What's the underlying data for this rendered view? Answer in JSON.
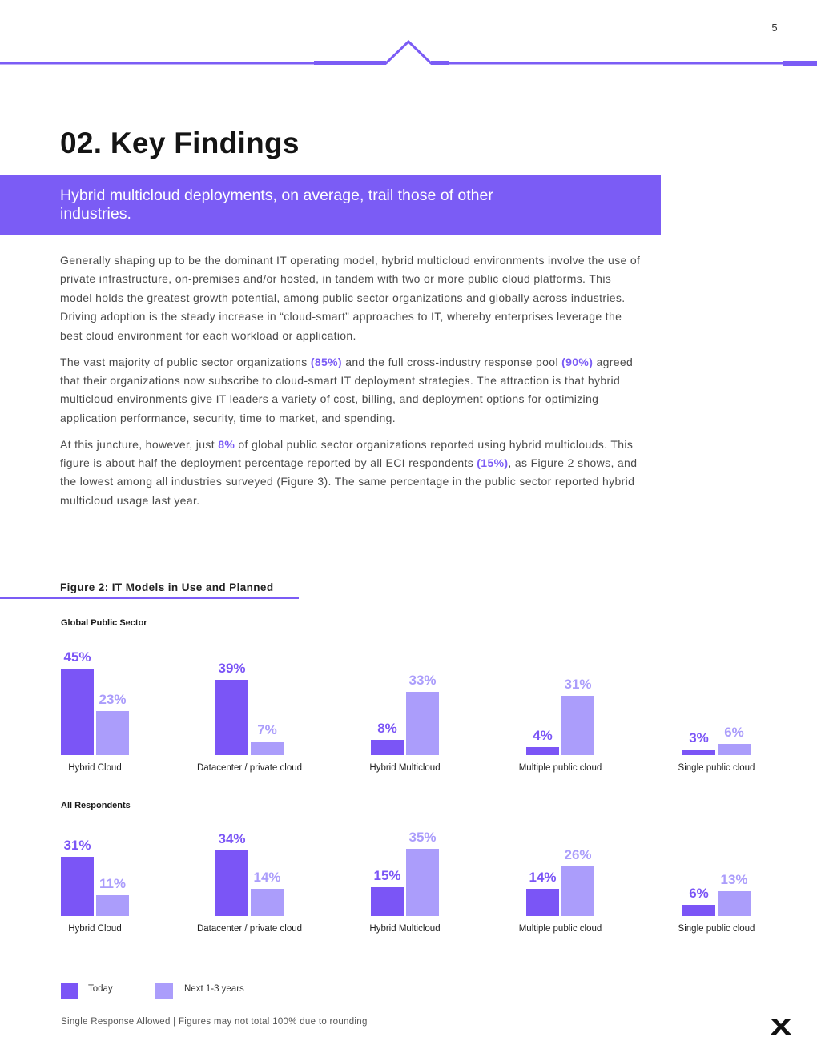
{
  "page": {
    "number": "5"
  },
  "section": {
    "title": "02. Key Findings",
    "banner": "Hybrid multicloud deployments, on average, trail those of other industries."
  },
  "body": {
    "p1": "Generally shaping up to be the dominant IT operating model, hybrid multicloud environments involve the use of private infrastructure, on-premises and/or hosted, in tandem with two or more public cloud platforms. This model holds the greatest growth potential, among public sector organizations and globally across industries. Driving adoption is the steady increase in “cloud-smart” approaches to IT, whereby enterprises leverage the best cloud environment for each workload or application.",
    "p2": [
      "The vast majority of public sector organizations ",
      "(85%)",
      " and the full cross-industry response pool ",
      "(90%)",
      " agreed that their organizations now subscribe to cloud-smart IT deployment strategies. The attraction is that hybrid multicloud environments give IT leaders a variety of cost, billing, and deployment options for optimizing application performance, security, time to market, and spending."
    ],
    "p3": [
      "At this juncture, however, just ",
      "8%",
      " of global public sector organizations reported using hybrid multiclouds. This figure is about half the deployment percentage reported by all ECI respondents ",
      "(15%)",
      ", as Figure 2 shows, and the lowest among all industries surveyed (Figure 3). The same percentage in the public sector reported hybrid multicloud usage last year."
    ]
  },
  "chart_data": {
    "type": "bar",
    "title": "Figure 2: IT Models in Use and Planned",
    "categories": [
      "Hybrid Cloud",
      "Datacenter / private cloud",
      "Hybrid Multicloud",
      "Multiple public cloud",
      "Single public cloud"
    ],
    "ylim": [
      0,
      50
    ],
    "unit": "%",
    "groups": [
      {
        "label": "Global Public Sector",
        "series": [
          {
            "name": "Today",
            "values": [
              45,
              39,
              8,
              4,
              3
            ]
          },
          {
            "name": "Next 1-3 years",
            "values": [
              23,
              7,
              33,
              31,
              6
            ]
          }
        ]
      },
      {
        "label": "All Respondents",
        "series": [
          {
            "name": "Today",
            "values": [
              31,
              34,
              15,
              14,
              6
            ]
          },
          {
            "name": "Next 1-3 years",
            "values": [
              11,
              14,
              35,
              26,
              13
            ]
          }
        ]
      }
    ],
    "legend": [
      "Today",
      "Next 1-3 years"
    ],
    "legend_position": "bottom-left"
  },
  "colors": {
    "accent": "#7b5cf5",
    "today": "#7b55f6",
    "next": "#ab9dfb"
  },
  "footnote": "Single Response Allowed  |  Figures may not total 100% due to rounding",
  "logo": {
    "icon": "x-logo-icon"
  }
}
